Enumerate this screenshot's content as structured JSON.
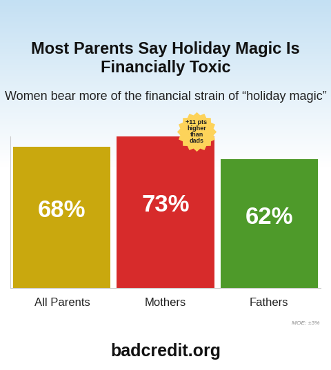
{
  "chart_data": {
    "type": "bar",
    "title": "Most Parents Say Holiday Magic Is Financially Toxic",
    "subtitle": "Women bear more of the financial strain of “holiday magic”",
    "categories": [
      "All Parents",
      "Mothers",
      "Fathers"
    ],
    "values": [
      68,
      73,
      62
    ],
    "value_labels": [
      "68%",
      "73%",
      "62%"
    ],
    "colors": [
      "#c9a80e",
      "#d72b2b",
      "#4e9a2a"
    ],
    "data_labels": true,
    "ylim": [
      0,
      73
    ],
    "yticks": [],
    "tick_labels": "x",
    "annotations": [
      {
        "text": "+11 pts\nhigher\nthan\ndads",
        "category": "Mothers"
      }
    ],
    "note": "MOE: ±3%",
    "source": "badcredit.org"
  }
}
